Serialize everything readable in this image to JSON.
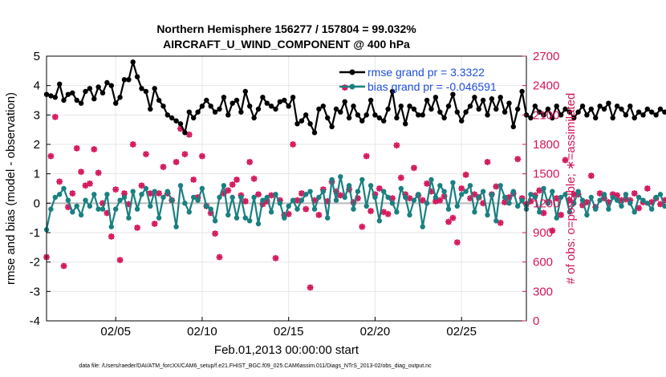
{
  "chart_data": {
    "type": "line",
    "title": "Northern Hemisphere 156277 / 157804 = 99.032%",
    "subtitle": "AIRCRAFT_U_WIND_COMPONENT @ 400 hPa",
    "xlabel": "Feb.01,2013 00:00:00 start",
    "ylabel_left": "rmse and bias (model - observation)",
    "ylabel_right": "# of obs: o=possible; ∗=assimilated",
    "footnote": "data file: /Users/raeder/DAI/ATM_forcXX/CAM6_setup/f.e21.FHIST_BGC.f09_025.CAM6assim.011/Diags_NTrS_2013-02/obs_diag_output.nc",
    "xlim": [
      1,
      28.75
    ],
    "ylim_left": [
      -4,
      5
    ],
    "ylim_right": [
      0,
      2700
    ],
    "xticks": [
      5,
      10,
      15,
      20,
      25
    ],
    "xtick_labels": [
      "02/05",
      "02/10",
      "02/15",
      "02/20",
      "02/25"
    ],
    "yticks_left": [
      5,
      4,
      3,
      2,
      1,
      0,
      -1,
      -2,
      -3,
      -4
    ],
    "yticks_right": [
      2700,
      2400,
      2100,
      1800,
      1500,
      1200,
      900,
      600,
      300,
      0
    ],
    "colors": {
      "rmse": "#000000",
      "bias": "#1a8080",
      "obs": "#d4145a",
      "legend_text": "#1f4fd8",
      "zero_line": "#bbbbbb"
    },
    "series": [
      {
        "name": "rmse grand pr = 3.3322",
        "axis": "left",
        "x_start": 1,
        "x_step": 0.25,
        "values": [
          3.7,
          3.65,
          3.6,
          4.05,
          3.5,
          3.7,
          3.75,
          3.5,
          3.4,
          3.8,
          3.9,
          3.55,
          3.95,
          3.75,
          4.1,
          4.0,
          3.4,
          3.6,
          4.2,
          4.2,
          4.8,
          4.3,
          3.9,
          3.8,
          3.2,
          3.9,
          3.5,
          3.3,
          3.0,
          2.9,
          2.8,
          2.7,
          2.4,
          3.1,
          2.9,
          3.1,
          3.3,
          3.5,
          3.3,
          3.1,
          3.2,
          3.6,
          3.0,
          3.4,
          3.5,
          3.1,
          3.8,
          3.3,
          2.9,
          3.2,
          3.6,
          3.4,
          3.3,
          3.2,
          3.45,
          3.5,
          3.3,
          3.6,
          2.7,
          2.8,
          3.0,
          2.7,
          2.4,
          3.2,
          3.3,
          2.9,
          2.6,
          3.2,
          3.1,
          3.45,
          2.9,
          3.3,
          3.0,
          2.8,
          3.0,
          3.5,
          3.0,
          2.9,
          2.8,
          3.2,
          3.8,
          2.9,
          3.3,
          2.7,
          3.3,
          3.2,
          3.0,
          3.0,
          3.5,
          3.2,
          3.6,
          3.1,
          2.9,
          3.3,
          3.7,
          3.1,
          2.8,
          3.1,
          3.3,
          3.6,
          3.2,
          3.5,
          3.0,
          3.55,
          3.2,
          3.6,
          3.1,
          3.4,
          2.6,
          3.2,
          3.8,
          3.0,
          2.9,
          3.3,
          3.1,
          3.0,
          3.2,
          2.9,
          3.3,
          3.0,
          3.2,
          3.1,
          2.9,
          3.1,
          3.3,
          3.0,
          3.2,
          2.9,
          3.3,
          3.2,
          3.4,
          2.9,
          3.3,
          3.2,
          3.0,
          3.3,
          2.9,
          3.1,
          3.0,
          3.2,
          3.1,
          3.0,
          3.2,
          3.1,
          3.0,
          3.1,
          2.9,
          3.0,
          2.8,
          3.2,
          3.1,
          3.0,
          3.2,
          2.9,
          3.3,
          3.0,
          3.1,
          3.3,
          3.0,
          2.8,
          3.2,
          3.1,
          3.1,
          3.2,
          3.1,
          3.2,
          3.0,
          3.3,
          3.1,
          2.9,
          3.1,
          3.0,
          3.2,
          3.1,
          3.0,
          3.2,
          3.3,
          3.0,
          2.9,
          3.0,
          2.9,
          3.2,
          3.3,
          3.0,
          3.2,
          3.1,
          3.0,
          3.3,
          3.1,
          3.3,
          3.0,
          3.2,
          3.5,
          3.3,
          3.1,
          3.1,
          3.0,
          3.4,
          3.3,
          2.9,
          3.3,
          3.1,
          3.0,
          2.9,
          2.9,
          3.0,
          3.1,
          3.2,
          3.1,
          3.0,
          3.3,
          3.1,
          3.2,
          3.3,
          3.0,
          3.2,
          3.0,
          3.1,
          3.2,
          3.0,
          2.9,
          3.0,
          3.2,
          3.3,
          2.9,
          3.0,
          3.1,
          3.0,
          3.3,
          3.0,
          3.1,
          3.2,
          3.0,
          3.1,
          3.2,
          2.95,
          3.1,
          3.3,
          3.0,
          3.1,
          3.2,
          3.0,
          3.1,
          3.2,
          3.1,
          3.0,
          3.1,
          3.2,
          3.0,
          3.1,
          3.0,
          3.2,
          3.1,
          3.0,
          3.2,
          3.0,
          3.1,
          3.2,
          3.1,
          2.9,
          3.2,
          3.0,
          3.1,
          3.0,
          3.1,
          3.0,
          3.2,
          2.9
        ]
      },
      {
        "name": "bias grand pr = -0.046591",
        "axis": "left",
        "x_start": 1,
        "x_step": 0.25,
        "values": [
          -0.9,
          -0.2,
          0.2,
          0.3,
          0.5,
          0.1,
          -0.3,
          -0.1,
          -0.4,
          0.1,
          -0.1,
          0.3,
          -0.2,
          -0.2,
          0.3,
          -0.8,
          -0.2,
          0.1,
          0.2,
          -0.5,
          0.4,
          -0.2,
          0.3,
          0.5,
          -0.1,
          0.4,
          -0.5,
          0.2,
          0.4,
          0.1,
          -0.8,
          0.6,
          0.0,
          -0.3,
          0.2,
          0.1,
          0.5,
          -0.1,
          -0.2,
          -0.6,
          0.2,
          0.6,
          -0.4,
          0.2,
          -0.5,
          0.2,
          -0.5,
          -0.6,
          0.2,
          -0.7,
          0.1,
          0.2,
          -0.3,
          0.3,
          0.0,
          -0.5,
          -0.1,
          0.1,
          -0.2,
          0.1,
          0.3,
          0.4,
          -0.2,
          0.2,
          0.4,
          -0.5,
          0.8,
          0.1,
          0.9,
          0.2,
          0.6,
          -0.2,
          0.4,
          0.8,
          -0.1,
          0.6,
          0.2,
          -0.6,
          0.4,
          0.2,
          0.0,
          -0.3,
          0.5,
          0.2,
          -0.4,
          0.1,
          0.3,
          -0.8,
          0.0,
          0.8,
          0.2,
          0.6,
          0.4,
          -0.2,
          0.7,
          -0.1,
          0.3,
          0.4,
          0.6,
          -0.3,
          0.2,
          0.4,
          -0.4,
          0.3,
          -0.6,
          0.6,
          0.2,
          0.0,
          0.4,
          -0.1,
          0.1,
          -0.2,
          0.3,
          0.2,
          -0.3,
          0.5,
          0.0,
          0.4,
          -0.5,
          0.2,
          0.3,
          -0.3,
          0.0,
          0.4,
          0.1,
          -0.4,
          0.2,
          -0.2,
          0.1,
          0.3,
          -0.2,
          0.2,
          0.1,
          -0.1,
          0.3,
          0.0,
          -0.3,
          0.2,
          0.1,
          0.0,
          -0.2,
          0.2,
          0.3,
          -0.1,
          0.0,
          0.2,
          -0.2,
          0.1,
          0.0,
          0.2,
          -0.3,
          0.1,
          0.0,
          0.2,
          -0.1,
          0.3,
          0.1,
          -0.2,
          0.0,
          0.1,
          0.2,
          -0.3,
          0.2,
          0.0,
          -0.1,
          0.2,
          0.1,
          -0.2,
          0.3,
          0.0,
          0.1,
          -0.1,
          0.2,
          0.0,
          -0.2,
          0.1,
          0.3,
          0.0,
          -0.1,
          0.2,
          0.1,
          -0.3,
          0.2,
          0.0,
          0.1,
          -0.2,
          0.2,
          0.3,
          0.0,
          -0.1,
          0.1,
          0.2,
          -0.2,
          0.0,
          0.1,
          0.2,
          -0.1,
          0.0,
          0.3,
          -0.2,
          0.1,
          0.0,
          0.2,
          -0.1,
          0.1,
          0.0,
          -0.2,
          0.2,
          0.1,
          0.0,
          -0.1,
          0.2,
          0.0,
          0.1,
          -0.2,
          0.0,
          0.1,
          0.2,
          -0.1,
          0.0,
          0.2,
          -0.1,
          0.0,
          0.1,
          -0.1,
          0.1,
          0.0,
          -0.1,
          0.1,
          0.0,
          -0.1,
          -0.1,
          0.0,
          -0.1,
          -0.1,
          -0.1,
          -0.1
        ]
      },
      {
        "name": "# of obs (possible / assimilated)",
        "axis": "right",
        "x_start": 1,
        "x_step": 0.25,
        "values": [
          650,
          1680,
          2080,
          1420,
          560,
          1160,
          1300,
          1760,
          1520,
          1380,
          1400,
          1750,
          1510,
          1200,
          1100,
          860,
          1340,
          620,
          1300,
          1190,
          1800,
          950,
          1380,
          1700,
          1300,
          990,
          1300,
          1570,
          1300,
          1230,
          1620,
          1960,
          1700,
          1900,
          1440,
          1260,
          1680,
          1170,
          1100,
          890,
          650,
          1300,
          1330,
          1390,
          1440,
          1280,
          1220,
          1620,
          1450,
          1290,
          1190,
          1220,
          1280,
          640,
          1230,
          1080,
          1090,
          1800,
          1230,
          1300,
          1140,
          340,
          1230,
          1080,
          1340,
          1220,
          1420,
          1320,
          1280,
          2380,
          1340,
          1210,
          1250,
          960,
          1680,
          1120,
          1290,
          1350,
          1110,
          1090,
          1250,
          1790,
          1460,
          1290,
          1250,
          1560,
          1280,
          1230,
          1400,
          1320,
          1220,
          1230,
          1270,
          1010,
          1050,
          800,
          1350,
          1490,
          1250,
          1290,
          1260,
          1200,
          1620,
          1290,
          1370,
          1000,
          1210,
          1260,
          1300,
          1650,
          1250,
          1190,
          1220,
          1280,
          1330,
          1100,
          1210,
          920,
          1250,
          1080,
          1640,
          1230,
          1290,
          1290,
          1180,
          1210,
          1480,
          1160,
          1300,
          1250,
          1210,
          1290,
          1280,
          1230,
          1240,
          1230,
          1300,
          1150,
          1210,
          1350,
          1210,
          1250,
          1190,
          1230,
          1260,
          1180,
          1290,
          1200,
          1260,
          1210,
          1180,
          1250,
          1220,
          1300,
          1240,
          1180,
          1250,
          1210,
          1210,
          1330,
          1230,
          1200,
          1160,
          1280,
          1210,
          1230,
          1260,
          1200,
          1230,
          1270,
          1220,
          1250,
          1180,
          1220,
          1240,
          1270,
          1210,
          1190,
          1250,
          1230,
          1210,
          1300,
          1240,
          1230,
          1210,
          1260,
          1200,
          1240,
          1230,
          1280,
          1190,
          1220,
          1250,
          1210,
          1270,
          1230,
          1200,
          1240,
          1260,
          1220,
          1230,
          1250,
          1210,
          1240,
          1270,
          1220,
          1200,
          1250,
          1230,
          1210,
          1260,
          1240,
          1220,
          1230,
          1210,
          1250,
          1240,
          1230,
          1200,
          1270,
          1230,
          1220,
          1240,
          1210,
          1260,
          1230,
          1250,
          1220,
          1200,
          1240,
          1230,
          1210,
          1250,
          1260,
          1220,
          1230,
          1240,
          1210,
          1250,
          1230,
          1220,
          1240,
          1200,
          1250,
          1230,
          1210,
          1240,
          1230,
          1210,
          0
        ]
      }
    ]
  }
}
